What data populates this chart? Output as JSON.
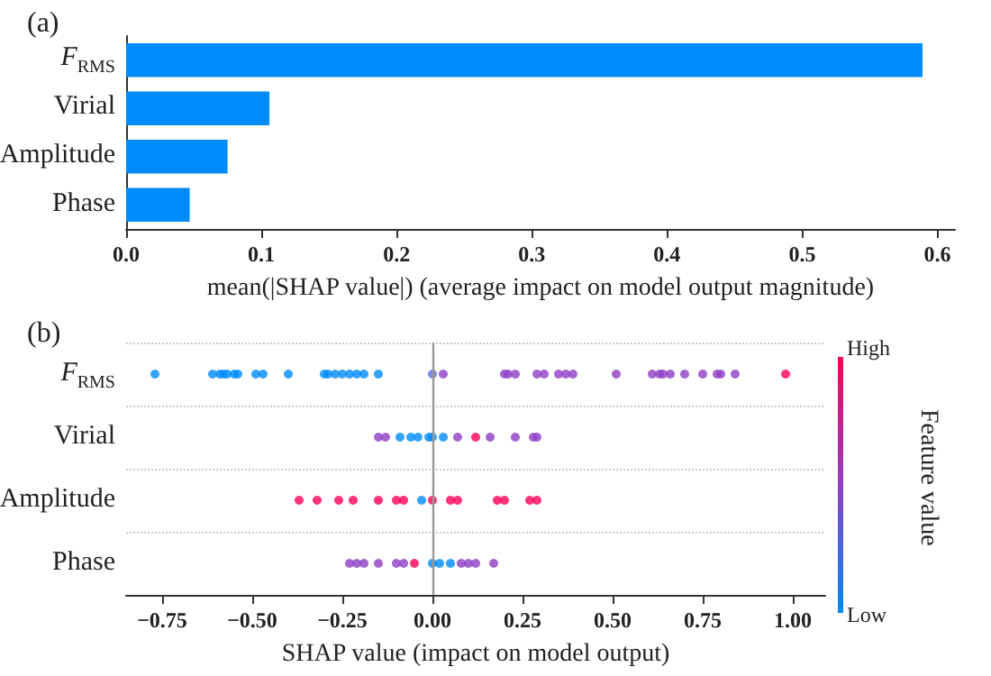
{
  "chart_data": [
    {
      "type": "bar",
      "title": "(a)",
      "orientation": "horizontal",
      "xlabel": "mean(|SHAP value|) (average impact on model output magnitude)",
      "categories": [
        "F$_{RMS}$",
        "Virial",
        "Amplitude",
        "Phase"
      ],
      "values": [
        0.589,
        0.106,
        0.075,
        0.047
      ],
      "color": "#008bfb",
      "xlim": [
        0,
        0.613
      ],
      "xticks": [
        {
          "value": 0,
          "label": "0.0"
        },
        {
          "value": 0.1,
          "label": "0.1"
        },
        {
          "value": 0.2,
          "label": "0.2"
        },
        {
          "value": 0.3,
          "label": "0.3"
        },
        {
          "value": 0.4,
          "label": "0.4"
        },
        {
          "value": 0.5,
          "label": "0.5"
        },
        {
          "value": 0.6,
          "label": "0.6"
        }
      ],
      "grid": false
    },
    {
      "type": "scatter",
      "title": "(b)",
      "orientation": "horizontal",
      "xlabel": "SHAP value (impact on model output)",
      "clabel": "Feature value",
      "annotations": [
        "High",
        "Low"
      ],
      "categories": [
        "F$_{RMS}$",
        "Virial",
        "Amplitude",
        "Phase"
      ],
      "series": [
        {
          "x": [
            "F$_{RMS}$",
            "F$_{RMS}$",
            "F$_{RMS}$",
            "F$_{RMS}$",
            "F$_{RMS}$",
            "F$_{RMS}$",
            "F$_{RMS}$",
            "F$_{RMS}$",
            "F$_{RMS}$",
            "F$_{RMS}$",
            "F$_{RMS}$",
            "F$_{RMS}$",
            "F$_{RMS}$",
            "F$_{RMS}$",
            "F$_{RMS}$",
            "F$_{RMS}$",
            "F$_{RMS}$",
            "F$_{RMS}$",
            "F$_{RMS}$",
            "F$_{RMS}$",
            "F$_{RMS}$",
            "F$_{RMS}$",
            "F$_{RMS}$",
            "F$_{RMS}$",
            "F$_{RMS}$",
            "F$_{RMS}$",
            "F$_{RMS}$",
            "F$_{RMS}$",
            "F$_{RMS}$",
            "F$_{RMS}$",
            "F$_{RMS}$",
            "F$_{RMS}$",
            "F$_{RMS}$",
            "F$_{RMS}$",
            "F$_{RMS}$",
            "F$_{RMS}$",
            "F$_{RMS}$",
            "F$_{RMS}$",
            "F$_{RMS}$",
            "Virial",
            "Virial",
            "Virial",
            "Virial",
            "Virial",
            "Virial",
            "Virial",
            "Virial",
            "Virial",
            "Virial",
            "Virial",
            "Virial",
            "Virial",
            "Virial",
            "Amplitude",
            "Amplitude",
            "Amplitude",
            "Amplitude",
            "Amplitude",
            "Amplitude",
            "Amplitude",
            "Amplitude",
            "Amplitude",
            "Amplitude",
            "Amplitude",
            "Amplitude",
            "Amplitude",
            "Amplitude",
            "Amplitude",
            "Phase",
            "Phase",
            "Phase",
            "Phase",
            "Phase",
            "Phase",
            "Phase",
            "Phase",
            "Phase",
            "Phase",
            "Phase",
            "Phase",
            "Phase",
            "Phase"
          ],
          "values": [
            -0.77,
            -0.61,
            -0.59,
            -0.58,
            -0.57,
            -0.55,
            -0.54,
            -0.49,
            -0.47,
            -0.4,
            -0.3,
            -0.29,
            -0.27,
            -0.25,
            -0.23,
            -0.21,
            -0.19,
            -0.15,
            0.0,
            0.03,
            0.2,
            0.21,
            0.23,
            0.29,
            0.31,
            0.35,
            0.37,
            0.39,
            0.51,
            0.61,
            0.63,
            0.64,
            0.66,
            0.7,
            0.75,
            0.79,
            0.8,
            0.84,
            0.98,
            -0.15,
            -0.13,
            -0.09,
            -0.06,
            -0.04,
            -0.01,
            0.0,
            0.03,
            0.07,
            0.12,
            0.16,
            0.23,
            0.28,
            0.29,
            -0.37,
            -0.32,
            -0.26,
            -0.22,
            -0.15,
            -0.1,
            -0.08,
            -0.03,
            0.0,
            0.05,
            0.07,
            0.18,
            0.2,
            0.27,
            0.29,
            -0.23,
            -0.21,
            -0.19,
            -0.15,
            -0.1,
            -0.08,
            -0.05,
            0.0,
            0.02,
            0.05,
            0.08,
            0.1,
            0.12,
            0.17
          ],
          "colors": [
            "#008bfb",
            "#008bfb",
            "#008bfb",
            "#008bfb",
            "#008bfb",
            "#008bfb",
            "#008bfb",
            "#008bfb",
            "#008bfb",
            "#008bfb",
            "#008bfb",
            "#008bfb",
            "#008bfb",
            "#008bfb",
            "#008bfb",
            "#008bfb",
            "#008bfb",
            "#008bfb",
            "#5a6be0",
            "#8e3fc4",
            "#8e3fc4",
            "#8e3fc4",
            "#8e3fc4",
            "#8e3fc4",
            "#8e3fc4",
            "#8e3fc4",
            "#8e3fc4",
            "#8e3fc4",
            "#8e3fc4",
            "#8e3fc4",
            "#8e3fc4",
            "#8e3fc4",
            "#8e3fc4",
            "#8e3fc4",
            "#8e3fc4",
            "#8e3fc4",
            "#8e3fc4",
            "#8e3fc4",
            "#ff0052",
            "#8e3fc4",
            "#8e3fc4",
            "#008bfb",
            "#008bfb",
            "#008bfb",
            "#008bfb",
            "#008bfb",
            "#008bfb",
            "#8e3fc4",
            "#ff0052",
            "#8e3fc4",
            "#8e3fc4",
            "#8e3fc4",
            "#8e3fc4",
            "#ff0052",
            "#ff0052",
            "#ff0052",
            "#ff0052",
            "#ff0052",
            "#ff0052",
            "#ff0052",
            "#008bfb",
            "#ff0052",
            "#ff0052",
            "#ff0052",
            "#ff0052",
            "#ff0052",
            "#ff0052",
            "#ff0052",
            "#8e3fc4",
            "#8e3fc4",
            "#8e3fc4",
            "#8e3fc4",
            "#8e3fc4",
            "#8e3fc4",
            "#ff0052",
            "#008bfb",
            "#008bfb",
            "#008bfb",
            "#8e3fc4",
            "#8e3fc4",
            "#8e3fc4",
            "#8e3fc4"
          ]
        }
      ],
      "xlim": [
        -0.85,
        1.09
      ],
      "xticks": [
        {
          "value": -0.75,
          "label": "−0.75"
        },
        {
          "value": -0.5,
          "label": "−0.50"
        },
        {
          "value": -0.25,
          "label": "−0.25"
        },
        {
          "value": 0,
          "label": "0.00"
        },
        {
          "value": 0.25,
          "label": "0.25"
        },
        {
          "value": 0.5,
          "label": "0.50"
        },
        {
          "value": 0.75,
          "label": "0.75"
        },
        {
          "value": 1.0,
          "label": "1.00"
        }
      ],
      "ref_lines": [
        {
          "axis": "x",
          "value": 0,
          "color": "#999999"
        }
      ],
      "grid": "y",
      "marker": "circle"
    }
  ]
}
